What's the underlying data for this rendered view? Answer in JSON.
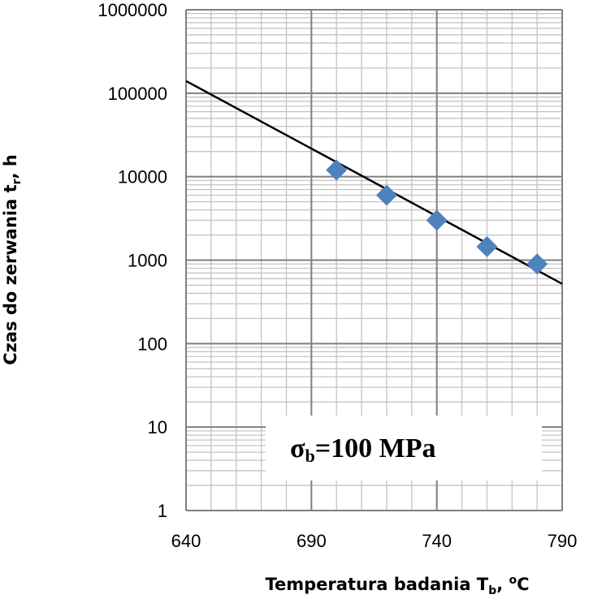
{
  "chart_data": {
    "type": "scatter",
    "xlabel": {
      "main": "Temperatura badania  T",
      "sub": "b",
      "tail": ", ",
      "sup": "o",
      "end": "C"
    },
    "ylabel": {
      "main": "Czas do zerwania t",
      "sub": "r",
      "end": ", h"
    },
    "x_ticks": [
      "640",
      "690",
      "740",
      "790"
    ],
    "y_ticks": [
      "1",
      "10",
      "100",
      "1000",
      "10000",
      "100000",
      "1000000"
    ],
    "xlim": [
      640,
      790
    ],
    "ylim": [
      1,
      1000000
    ],
    "y_scale": "log",
    "grid": true,
    "points": [
      {
        "x": 700,
        "y": 12000
      },
      {
        "x": 720,
        "y": 6000
      },
      {
        "x": 740,
        "y": 3000
      },
      {
        "x": 760,
        "y": 1450
      },
      {
        "x": 780,
        "y": 900
      }
    ],
    "trendline": {
      "x": [
        640,
        790
      ],
      "y": [
        140000,
        520
      ]
    },
    "marker_color": "#4f81bd",
    "annotation": {
      "sigma": "σ",
      "sub": "b",
      "text": "=100 MPa"
    }
  }
}
